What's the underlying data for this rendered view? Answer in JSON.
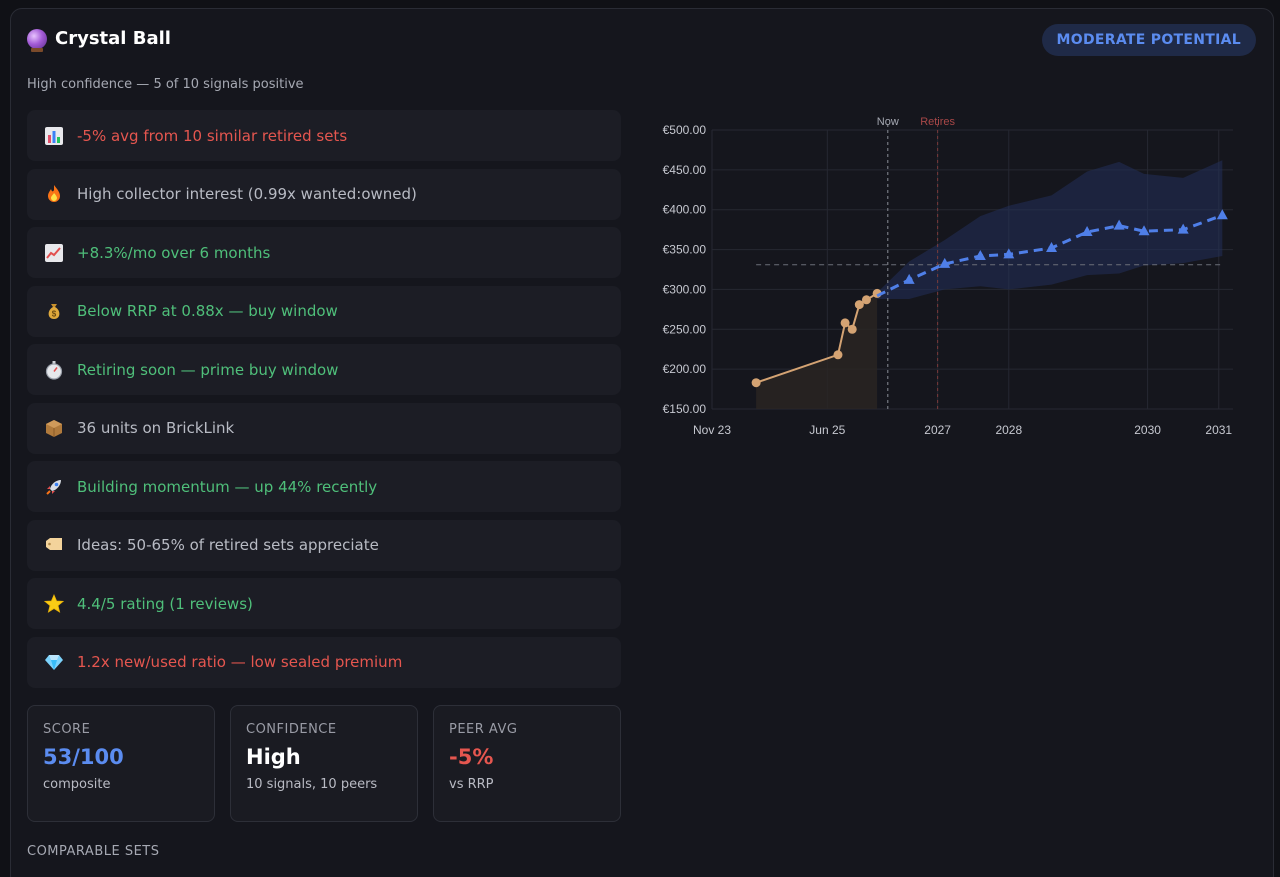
{
  "header": {
    "title": "Crystal Ball",
    "subtitle": "High confidence — 5 of 10 signals positive",
    "badge": "MODERATE POTENTIAL"
  },
  "signals": [
    {
      "icon": "chart-icon",
      "text": "-5% avg from 10 similar retired sets",
      "tone": "neg"
    },
    {
      "icon": "fire-icon",
      "text": "High collector interest (0.99x wanted:owned)",
      "tone": "neu"
    },
    {
      "icon": "trend-up-icon",
      "text": "+8.3%/mo over 6 months",
      "tone": "pos"
    },
    {
      "icon": "money-bag-icon",
      "text": "Below RRP at 0.88x — buy window",
      "tone": "pos"
    },
    {
      "icon": "stopwatch-icon",
      "text": "Retiring soon — prime buy window",
      "tone": "pos"
    },
    {
      "icon": "package-icon",
      "text": "36 units on BrickLink",
      "tone": "neu"
    },
    {
      "icon": "rocket-icon",
      "text": "Building momentum — up 44% recently",
      "tone": "pos"
    },
    {
      "icon": "tag-icon",
      "text": "Ideas: 50-65% of retired sets appreciate",
      "tone": "neu"
    },
    {
      "icon": "star-icon",
      "text": "4.4/5 rating (1 reviews)",
      "tone": "pos"
    },
    {
      "icon": "gem-icon",
      "text": "1.2x new/used ratio — low sealed premium",
      "tone": "neg"
    }
  ],
  "stats": {
    "score": {
      "label": "SCORE",
      "value": "53/100",
      "sub": "composite"
    },
    "confidence": {
      "label": "CONFIDENCE",
      "value": "High",
      "sub": "10 signals, 10 peers"
    },
    "peer": {
      "label": "PEER AVG",
      "value": "-5%",
      "sub": "vs RRP"
    }
  },
  "comparable_heading": "COMPARABLE SETS",
  "colors": {
    "accent": "#5b8cf0",
    "positive": "#4fbf7a",
    "negative": "#e5564f",
    "history": "#d4a373",
    "band": "#23305a"
  },
  "chart_data": {
    "type": "line",
    "y_ticks": [
      "€500.00",
      "€450.00",
      "€400.00",
      "€350.00",
      "€300.00",
      "€250.00",
      "€200.00",
      "€150.00"
    ],
    "x_ticks": [
      "Nov 23",
      "Jun 25",
      "2027",
      "2028",
      "2030",
      "2031"
    ],
    "ylim": [
      150,
      500
    ],
    "xlim": [
      2023.83,
      2031.15
    ],
    "x_tick_positions": [
      2023.83,
      2025.45,
      2027.0,
      2028.0,
      2029.95,
      2030.95
    ],
    "markers": [
      {
        "label": "Now",
        "x": 2026.3,
        "style": "dashed-gray"
      },
      {
        "label": "Retires",
        "x": 2027.0,
        "style": "dashed-red"
      }
    ],
    "reference_line": {
      "y": 331
    },
    "series": [
      {
        "style": "history",
        "x": [
          2024.45,
          2025.6,
          2025.7,
          2025.8,
          2025.9,
          2026.0,
          2026.15
        ],
        "y": [
          183,
          218,
          258,
          250,
          281,
          287,
          295
        ]
      },
      {
        "style": "forecast",
        "x": [
          2026.15,
          2026.6,
          2027.1,
          2027.6,
          2028.0,
          2028.6,
          2029.1,
          2029.55,
          2029.9,
          2030.45,
          2031.0
        ],
        "y": [
          292,
          312,
          332,
          342,
          344,
          352,
          372,
          380,
          373,
          375,
          393
        ]
      }
    ],
    "band": {
      "x": [
        2026.15,
        2026.6,
        2027.1,
        2027.6,
        2028.0,
        2028.6,
        2029.1,
        2029.55,
        2029.9,
        2030.45,
        2031.0
      ],
      "upper": [
        296,
        335,
        362,
        392,
        405,
        418,
        448,
        460,
        445,
        440,
        462
      ],
      "lower": [
        288,
        288,
        300,
        304,
        300,
        306,
        318,
        320,
        330,
        333,
        342
      ]
    }
  }
}
